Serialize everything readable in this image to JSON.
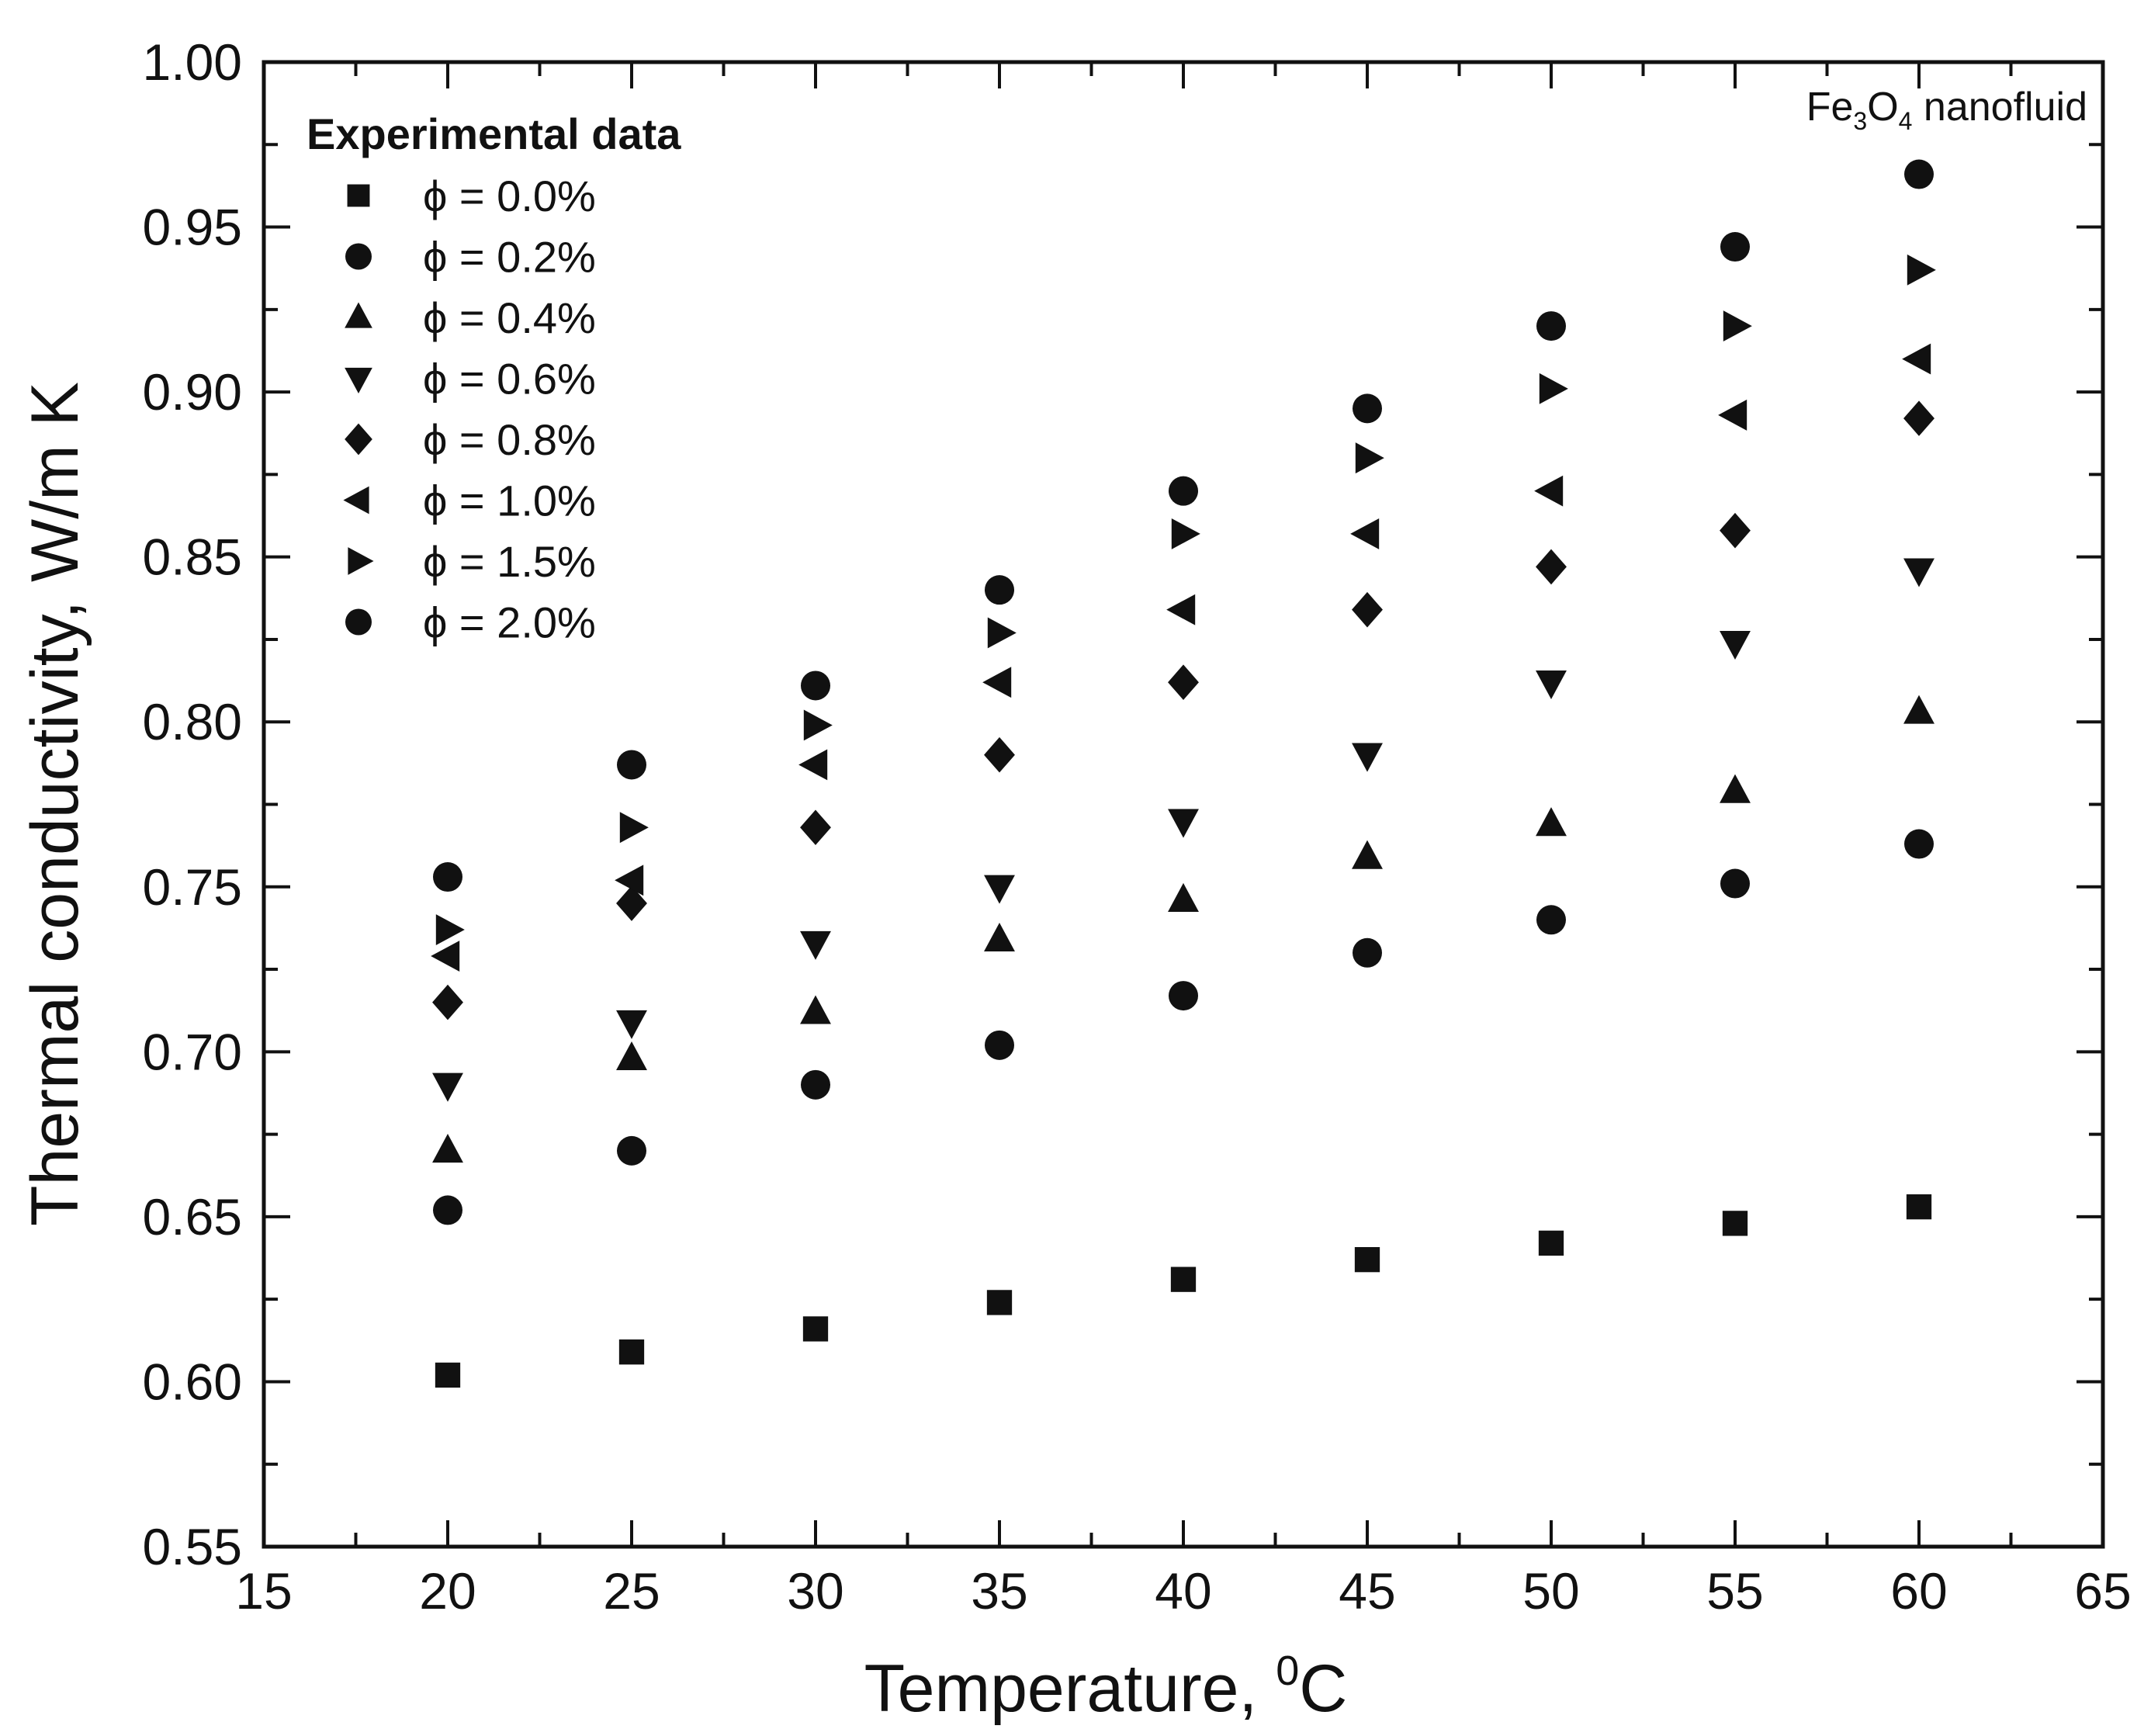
{
  "chart_data": {
    "type": "scatter",
    "title": "",
    "xlabel": "Temperature, ",
    "xlabel_sup": "0",
    "xlabel_unit": "C",
    "ylabel": "Thermal conductivity, W/m K",
    "xlim": [
      15,
      65
    ],
    "ylim": [
      0.55,
      1.0
    ],
    "xticks": [
      15,
      20,
      25,
      30,
      35,
      40,
      45,
      50,
      55,
      60,
      65
    ],
    "xtick_labels": [
      "15",
      "20",
      "25",
      "30",
      "35",
      "40",
      "45",
      "50",
      "55",
      "60",
      "65"
    ],
    "yticks": [
      0.55,
      0.6,
      0.65,
      0.7,
      0.75,
      0.8,
      0.85,
      0.9,
      0.95,
      1.0
    ],
    "ytick_labels": [
      "0.55",
      "0.60",
      "0.65",
      "0.70",
      "0.75",
      "0.80",
      "0.85",
      "0.90",
      "0.95",
      "1.00"
    ],
    "grid": false,
    "legend_title": "Experimental data",
    "legend_position": "top-left",
    "annotation": {
      "text_fe": "Fe",
      "sub_1": "3",
      "text_o": "O",
      "sub_2": "4",
      "text_rest": " nanofluid",
      "position": "top-right"
    },
    "x": [
      20,
      25,
      30,
      35,
      40,
      45,
      50,
      55,
      60
    ],
    "series": [
      {
        "name": "ϕ = 0.0%",
        "marker": "square",
        "values": [
          0.602,
          0.609,
          0.616,
          0.624,
          0.631,
          0.637,
          0.642,
          0.648,
          0.653
        ]
      },
      {
        "name": "ϕ = 0.2%",
        "marker": "circle",
        "values": [
          0.652,
          0.67,
          0.69,
          0.702,
          0.717,
          0.73,
          0.74,
          0.751,
          0.763
        ]
      },
      {
        "name": "ϕ = 0.4%",
        "marker": "triangle-up",
        "values": [
          0.67,
          0.698,
          0.712,
          0.734,
          0.746,
          0.759,
          0.769,
          0.779,
          0.803
        ]
      },
      {
        "name": "ϕ = 0.6%",
        "marker": "triangle-down",
        "values": [
          0.69,
          0.709,
          0.733,
          0.75,
          0.77,
          0.79,
          0.812,
          0.824,
          0.846
        ]
      },
      {
        "name": "ϕ = 0.8%",
        "marker": "diamond",
        "values": [
          0.715,
          0.745,
          0.768,
          0.79,
          0.812,
          0.834,
          0.847,
          0.858,
          0.892
        ]
      },
      {
        "name": "ϕ = 1.0%",
        "marker": "triangle-left",
        "values": [
          0.729,
          0.752,
          0.787,
          0.812,
          0.834,
          0.857,
          0.87,
          0.893,
          0.91
        ]
      },
      {
        "name": "ϕ = 1.5%",
        "marker": "triangle-right",
        "values": [
          0.737,
          0.768,
          0.799,
          0.827,
          0.857,
          0.88,
          0.901,
          0.92,
          0.937
        ]
      },
      {
        "name": "ϕ = 2.0%",
        "marker": "circle",
        "values": [
          0.753,
          0.787,
          0.811,
          0.84,
          0.87,
          0.895,
          0.92,
          0.944,
          0.966
        ]
      }
    ]
  }
}
